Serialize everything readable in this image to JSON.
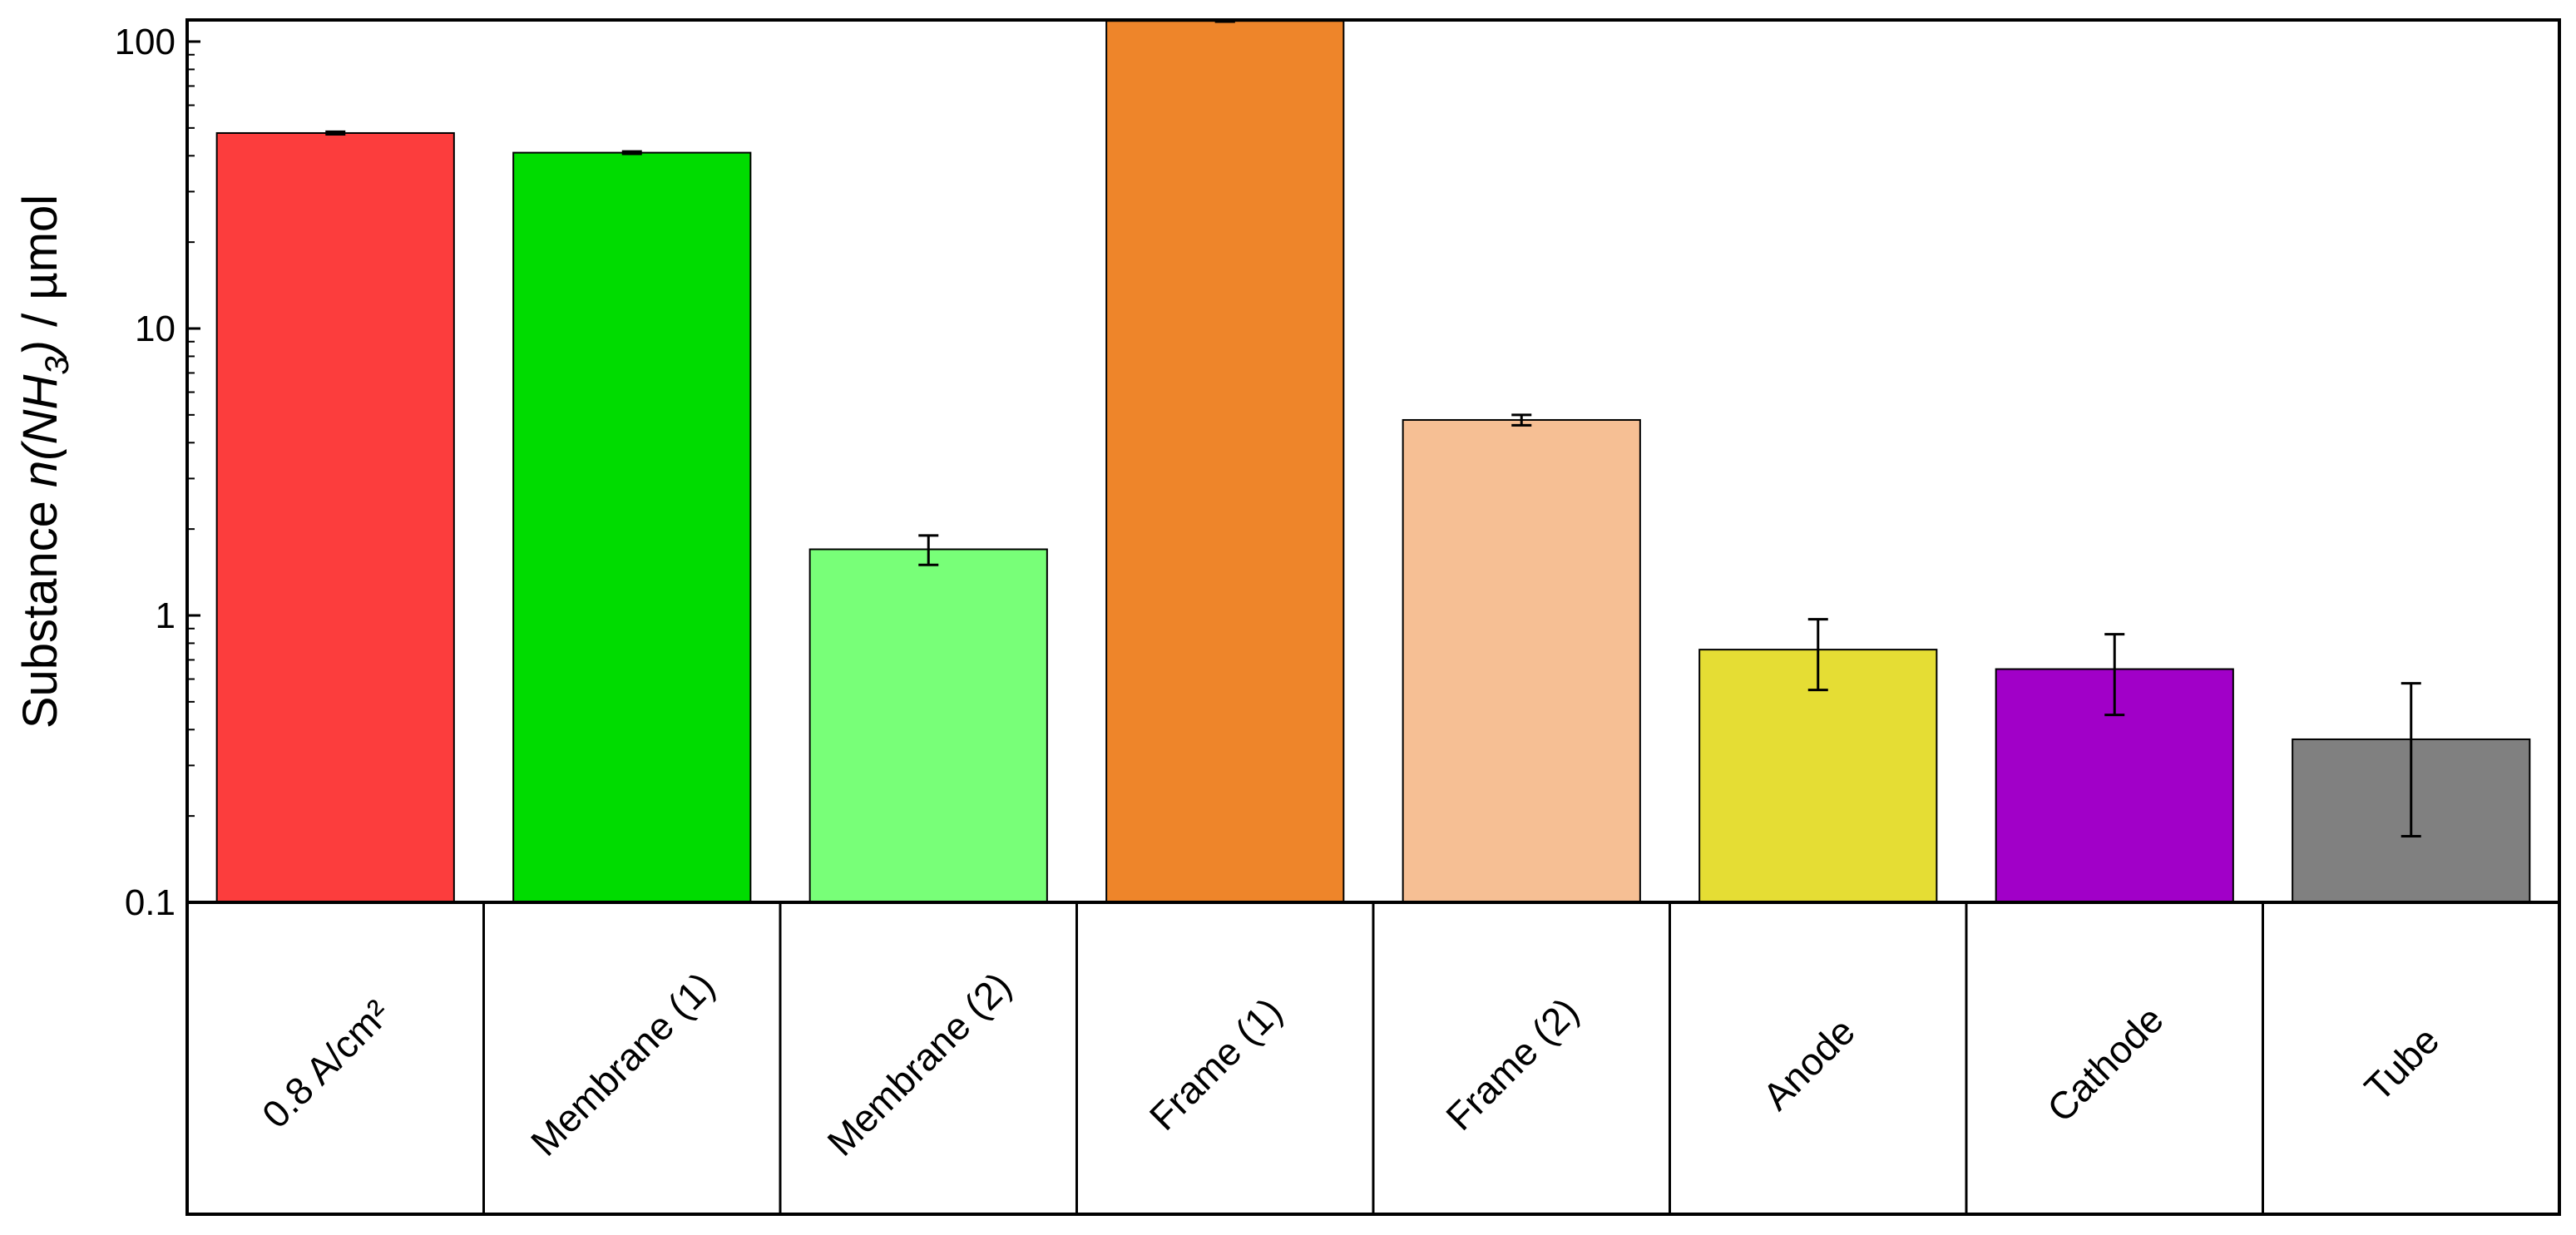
{
  "chart_data": {
    "type": "bar",
    "yscale": "log",
    "ylim": [
      0.1,
      120
    ],
    "yticks": [
      "100",
      "10",
      "1",
      "0.1"
    ],
    "ylabel": {
      "prefix": "Substance ",
      "var": "n(NH",
      "sub": "3",
      "close": ")",
      "suffix": " / µmol"
    },
    "categories": [
      "0.8 A/cm²",
      "Membrane (1)",
      "Membrane (2)",
      "Frame (1)",
      "Frame (2)",
      "Anode",
      "Cathode",
      "Tube"
    ],
    "values": [
      48,
      41,
      1.7,
      118,
      4.8,
      0.76,
      0.65,
      0.37
    ],
    "error_low": [
      47.5,
      40.6,
      1.5,
      117.5,
      4.6,
      0.55,
      0.45,
      0.17
    ],
    "error_high": [
      48.5,
      41.4,
      1.9,
      118.5,
      5.0,
      0.97,
      0.86,
      0.58
    ],
    "colors": [
      "#fc3d3d",
      "#00dc00",
      "#78ff78",
      "#ee852a",
      "#f6bf94",
      "#e5dd34",
      "#a100c8",
      "#808080"
    ],
    "grid": false,
    "legend": "none"
  }
}
